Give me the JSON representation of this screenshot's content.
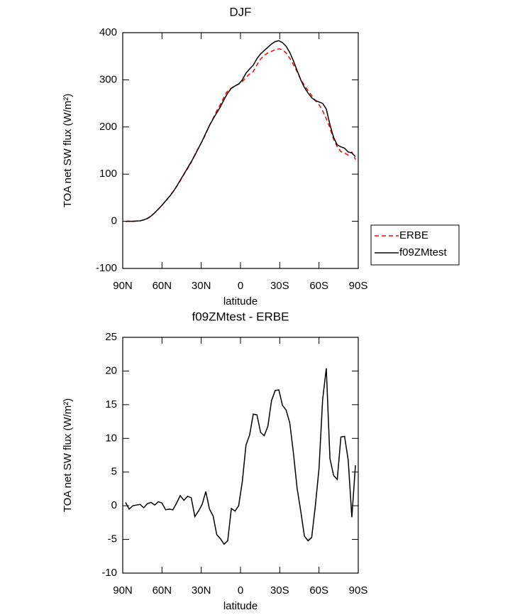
{
  "chart_data": [
    {
      "type": "line",
      "title": "DJF",
      "x_label": "latitude",
      "y_label": "TOA net SW flux (W/m²)",
      "x": [
        87.86,
        85.1,
        82.31,
        79.53,
        76.74,
        73.95,
        71.16,
        68.37,
        65.58,
        62.79,
        60.0,
        57.21,
        54.42,
        51.63,
        48.84,
        46.05,
        43.26,
        40.47,
        37.67,
        34.88,
        32.09,
        29.3,
        26.51,
        23.72,
        20.93,
        18.14,
        15.35,
        12.56,
        9.77,
        6.98,
        4.19,
        1.4,
        -1.4,
        -4.19,
        -6.98,
        -9.77,
        -12.56,
        -15.35,
        -18.14,
        -20.93,
        -23.72,
        -26.51,
        -29.3,
        -32.09,
        -34.88,
        -37.67,
        -40.47,
        -43.26,
        -46.05,
        -48.84,
        -51.63,
        -54.42,
        -57.21,
        -60.0,
        -62.79,
        -65.58,
        -68.37,
        -71.16,
        -73.95,
        -76.74,
        -79.53,
        -82.31,
        -85.1,
        -87.86
      ],
      "series": [
        {
          "name": "ERBE",
          "color": "#ff0000",
          "dash": true,
          "values": [
            -0.5,
            0.5,
            0,
            0.4,
            0.8,
            3.3,
            5.7,
            10.5,
            17.9,
            25.4,
            33.6,
            43.6,
            52.5,
            62.6,
            73.6,
            85.5,
            99.2,
            111.6,
            124.8,
            141.6,
            155.8,
            169.8,
            184.9,
            203.5,
            218.5,
            234.3,
            247.9,
            263.7,
            277.2,
            282.4,
            287.8,
            291,
            296.4,
            305,
            312.5,
            317.4,
            331.5,
            344.1,
            351.6,
            357.2,
            360.4,
            363.9,
            365.8,
            364.1,
            356.8,
            345.7,
            332.2,
            317.4,
            300.8,
            288.5,
            277.2,
            266.7,
            256,
            247.5,
            234.2,
            217.6,
            198,
            173.5,
            158.1,
            147.8,
            144.7,
            140.2,
            146.7,
            131
          ]
        },
        {
          "name": "f09ZMtest",
          "color": "#000000",
          "dash": false,
          "values": [
            0,
            0,
            0,
            0.5,
            1,
            3,
            6,
            11,
            18,
            26,
            34,
            43,
            52,
            62,
            74,
            87,
            100,
            113,
            126,
            140,
            155,
            170,
            187,
            203,
            217,
            230,
            243,
            258,
            272,
            282,
            287,
            291,
            300,
            314,
            323,
            331,
            345,
            355,
            362,
            369,
            376,
            381,
            383,
            379,
            371,
            358,
            340,
            320,
            300,
            284,
            272,
            262,
            256,
            253,
            250,
            238,
            205,
            178,
            162,
            158,
            155,
            147,
            145,
            137
          ]
        }
      ],
      "xlim": [
        90,
        -90
      ],
      "xticks": [
        {
          "value": 90,
          "label": "90N"
        },
        {
          "value": 60,
          "label": "60N"
        },
        {
          "value": 30,
          "label": "30N"
        },
        0,
        {
          "value": -30,
          "label": "30S"
        },
        {
          "value": -60,
          "label": "60S"
        },
        {
          "value": -90,
          "label": "90S"
        }
      ],
      "ylim": [
        -100,
        400
      ],
      "yticks": [
        -100,
        0,
        100,
        200,
        300,
        400
      ],
      "legend": "right"
    },
    {
      "type": "line",
      "title": "f09ZMtest - ERBE",
      "x_label": "latitude",
      "y_label": "TOA net SW flux (W/m²)",
      "x": [
        87.86,
        85.1,
        82.31,
        79.53,
        76.74,
        73.95,
        71.16,
        68.37,
        65.58,
        62.79,
        60.0,
        57.21,
        54.42,
        51.63,
        48.84,
        46.05,
        43.26,
        40.47,
        37.67,
        34.88,
        32.09,
        29.3,
        26.51,
        23.72,
        20.93,
        18.14,
        15.35,
        12.56,
        9.77,
        6.98,
        4.19,
        1.4,
        -1.4,
        -4.19,
        -6.98,
        -9.77,
        -12.56,
        -15.35,
        -18.14,
        -20.93,
        -23.72,
        -26.51,
        -29.3,
        -32.09,
        -34.88,
        -37.67,
        -40.47,
        -43.26,
        -46.05,
        -48.84,
        -51.63,
        -54.42,
        -57.21,
        -60.0,
        -62.79,
        -65.58,
        -68.37,
        -71.16,
        -73.95,
        -76.74,
        -79.53,
        -82.31,
        -85.1,
        -87.86
      ],
      "values": [
        0.5,
        -0.5,
        0,
        0.1,
        0.2,
        -0.3,
        0.3,
        0.5,
        0.1,
        0.6,
        0.4,
        -0.6,
        -0.5,
        -0.6,
        0.4,
        1.5,
        0.8,
        1.4,
        1.2,
        -1.6,
        -0.8,
        0.2,
        2.1,
        -0.5,
        -1.5,
        -4.3,
        -4.9,
        -5.7,
        -5.2,
        -0.4,
        -0.8,
        0,
        3.6,
        9,
        10.5,
        13.6,
        13.5,
        10.9,
        10.4,
        11.8,
        15.6,
        17.1,
        17.2,
        14.9,
        14.2,
        12.3,
        7.8,
        2.6,
        -0.8,
        -4.5,
        -5.2,
        -4.7,
        0,
        5.5,
        15.8,
        20.4,
        7,
        4.5,
        3.9,
        10.2,
        10.3,
        6.8,
        -1.7,
        6
      ],
      "color": "#000000",
      "xlim": [
        90,
        -90
      ],
      "xticks": [
        {
          "value": 90,
          "label": "90N"
        },
        {
          "value": 60,
          "label": "60N"
        },
        {
          "value": 30,
          "label": "30N"
        },
        0,
        {
          "value": -30,
          "label": "30S"
        },
        {
          "value": -60,
          "label": "60S"
        },
        {
          "value": -90,
          "label": "90S"
        }
      ],
      "ylim": [
        -10,
        25
      ],
      "yticks": [
        -10,
        -5,
        0,
        5,
        10,
        15,
        20,
        25
      ]
    }
  ]
}
